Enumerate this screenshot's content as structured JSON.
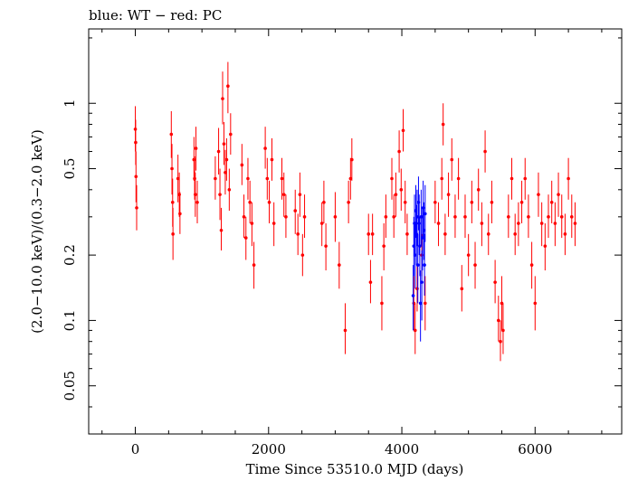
{
  "chart_data": {
    "type": "scatter",
    "title": "blue: WT − red: PC",
    "xlabel": "Time Since 53510.0 MJD (days)",
    "ylabel": "(2.0−10.0 keV)/(0.3−2.0 keV)",
    "xlim": [
      -700,
      7300
    ],
    "ylim": [
      0.03,
      2.2
    ],
    "yscale": "log",
    "grid": false,
    "xticks": [
      0,
      2000,
      4000,
      6000
    ],
    "xtick_labels": [
      "0",
      "2000",
      "4000",
      "6000"
    ],
    "yticks": [
      0.05,
      0.1,
      0.2,
      0.5,
      1
    ],
    "ytick_labels": [
      "0.05",
      "0.1",
      "0.2",
      "0.5",
      "1"
    ],
    "series": [
      {
        "name": "PC",
        "color": "#ff0000",
        "points": [
          [
            0,
            0.76,
            0.6,
            0.97
          ],
          [
            5,
            0.66,
            0.52,
            0.84
          ],
          [
            10,
            0.46,
            0.35,
            0.6
          ],
          [
            20,
            0.33,
            0.26,
            0.42
          ],
          [
            540,
            0.72,
            0.56,
            0.92
          ],
          [
            550,
            0.5,
            0.38,
            0.65
          ],
          [
            560,
            0.35,
            0.27,
            0.45
          ],
          [
            565,
            0.25,
            0.19,
            0.33
          ],
          [
            640,
            0.45,
            0.35,
            0.58
          ],
          [
            660,
            0.38,
            0.3,
            0.48
          ],
          [
            670,
            0.31,
            0.25,
            0.39
          ],
          [
            880,
            0.55,
            0.44,
            0.7
          ],
          [
            890,
            0.45,
            0.36,
            0.57
          ],
          [
            900,
            0.38,
            0.3,
            0.48
          ],
          [
            910,
            0.62,
            0.49,
            0.78
          ],
          [
            930,
            0.35,
            0.28,
            0.44
          ],
          [
            1200,
            0.45,
            0.36,
            0.57
          ],
          [
            1250,
            0.6,
            0.47,
            0.77
          ],
          [
            1270,
            0.38,
            0.29,
            0.5
          ],
          [
            1290,
            0.26,
            0.21,
            0.33
          ],
          [
            1310,
            1.05,
            0.8,
            1.4
          ],
          [
            1330,
            0.65,
            0.52,
            0.82
          ],
          [
            1350,
            0.48,
            0.38,
            0.61
          ],
          [
            1370,
            0.55,
            0.44,
            0.69
          ],
          [
            1390,
            1.2,
            0.9,
            1.55
          ],
          [
            1410,
            0.4,
            0.32,
            0.5
          ],
          [
            1430,
            0.72,
            0.58,
            0.9
          ],
          [
            1600,
            0.52,
            0.42,
            0.65
          ],
          [
            1630,
            0.3,
            0.24,
            0.38
          ],
          [
            1660,
            0.24,
            0.19,
            0.3
          ],
          [
            1690,
            0.45,
            0.36,
            0.56
          ],
          [
            1720,
            0.35,
            0.28,
            0.44
          ],
          [
            1750,
            0.28,
            0.22,
            0.35
          ],
          [
            1780,
            0.18,
            0.14,
            0.23
          ],
          [
            1950,
            0.62,
            0.5,
            0.78
          ],
          [
            1980,
            0.45,
            0.36,
            0.56
          ],
          [
            2010,
            0.35,
            0.28,
            0.44
          ],
          [
            2050,
            0.55,
            0.44,
            0.69
          ],
          [
            2080,
            0.28,
            0.22,
            0.35
          ],
          [
            2200,
            0.45,
            0.36,
            0.56
          ],
          [
            2230,
            0.38,
            0.3,
            0.48
          ],
          [
            2260,
            0.3,
            0.24,
            0.38
          ],
          [
            2400,
            0.32,
            0.25,
            0.4
          ],
          [
            2440,
            0.25,
            0.2,
            0.31
          ],
          [
            2470,
            0.38,
            0.3,
            0.48
          ],
          [
            2510,
            0.2,
            0.16,
            0.25
          ],
          [
            2540,
            0.3,
            0.24,
            0.38
          ],
          [
            2800,
            0.28,
            0.22,
            0.35
          ],
          [
            2830,
            0.35,
            0.28,
            0.44
          ],
          [
            2860,
            0.22,
            0.17,
            0.28
          ],
          [
            3000,
            0.3,
            0.23,
            0.39
          ],
          [
            3060,
            0.18,
            0.14,
            0.23
          ],
          [
            3150,
            0.09,
            0.07,
            0.12
          ],
          [
            3200,
            0.35,
            0.28,
            0.44
          ],
          [
            3230,
            0.45,
            0.36,
            0.56
          ],
          [
            3250,
            0.55,
            0.44,
            0.69
          ],
          [
            3500,
            0.25,
            0.2,
            0.31
          ],
          [
            3530,
            0.15,
            0.12,
            0.19
          ],
          [
            3560,
            0.25,
            0.2,
            0.31
          ],
          [
            3700,
            0.12,
            0.09,
            0.16
          ],
          [
            3730,
            0.22,
            0.17,
            0.28
          ],
          [
            3760,
            0.3,
            0.24,
            0.38
          ],
          [
            3850,
            0.45,
            0.36,
            0.56
          ],
          [
            3880,
            0.3,
            0.24,
            0.38
          ],
          [
            3910,
            0.38,
            0.3,
            0.48
          ],
          [
            3960,
            0.6,
            0.48,
            0.75
          ],
          [
            3990,
            0.4,
            0.32,
            0.5
          ],
          [
            4020,
            0.75,
            0.6,
            0.94
          ],
          [
            4050,
            0.35,
            0.28,
            0.44
          ],
          [
            4080,
            0.25,
            0.2,
            0.31
          ],
          [
            4180,
            0.12,
            0.09,
            0.16
          ],
          [
            4200,
            0.09,
            0.07,
            0.12
          ],
          [
            4230,
            0.14,
            0.11,
            0.18
          ],
          [
            4300,
            0.2,
            0.16,
            0.25
          ],
          [
            4350,
            0.12,
            0.09,
            0.16
          ],
          [
            4500,
            0.35,
            0.28,
            0.44
          ],
          [
            4550,
            0.28,
            0.22,
            0.35
          ],
          [
            4600,
            0.45,
            0.36,
            0.56
          ],
          [
            4620,
            0.8,
            0.64,
            1.0
          ],
          [
            4650,
            0.25,
            0.2,
            0.31
          ],
          [
            4700,
            0.38,
            0.3,
            0.48
          ],
          [
            4750,
            0.55,
            0.44,
            0.69
          ],
          [
            4800,
            0.3,
            0.24,
            0.38
          ],
          [
            4850,
            0.45,
            0.36,
            0.56
          ],
          [
            4900,
            0.14,
            0.11,
            0.18
          ],
          [
            4950,
            0.3,
            0.24,
            0.38
          ],
          [
            5000,
            0.2,
            0.16,
            0.25
          ],
          [
            5050,
            0.35,
            0.28,
            0.44
          ],
          [
            5100,
            0.18,
            0.14,
            0.23
          ],
          [
            5150,
            0.4,
            0.32,
            0.5
          ],
          [
            5200,
            0.28,
            0.22,
            0.35
          ],
          [
            5250,
            0.6,
            0.48,
            0.75
          ],
          [
            5300,
            0.25,
            0.2,
            0.31
          ],
          [
            5350,
            0.35,
            0.28,
            0.44
          ],
          [
            5400,
            0.15,
            0.12,
            0.19
          ],
          [
            5450,
            0.1,
            0.08,
            0.13
          ],
          [
            5480,
            0.08,
            0.065,
            0.1
          ],
          [
            5500,
            0.12,
            0.09,
            0.16
          ],
          [
            5520,
            0.09,
            0.07,
            0.12
          ],
          [
            5600,
            0.3,
            0.24,
            0.38
          ],
          [
            5650,
            0.45,
            0.36,
            0.56
          ],
          [
            5700,
            0.25,
            0.2,
            0.31
          ],
          [
            5750,
            0.28,
            0.22,
            0.35
          ],
          [
            5800,
            0.35,
            0.28,
            0.44
          ],
          [
            5850,
            0.45,
            0.36,
            0.56
          ],
          [
            5900,
            0.3,
            0.24,
            0.38
          ],
          [
            5950,
            0.18,
            0.14,
            0.23
          ],
          [
            6000,
            0.12,
            0.09,
            0.16
          ],
          [
            6050,
            0.38,
            0.3,
            0.48
          ],
          [
            6100,
            0.28,
            0.22,
            0.35
          ],
          [
            6150,
            0.22,
            0.17,
            0.28
          ],
          [
            6200,
            0.3,
            0.24,
            0.38
          ],
          [
            6250,
            0.35,
            0.28,
            0.44
          ],
          [
            6300,
            0.28,
            0.22,
            0.35
          ],
          [
            6350,
            0.38,
            0.3,
            0.48
          ],
          [
            6400,
            0.3,
            0.24,
            0.38
          ],
          [
            6450,
            0.25,
            0.2,
            0.31
          ],
          [
            6500,
            0.45,
            0.36,
            0.56
          ],
          [
            6550,
            0.3,
            0.24,
            0.38
          ],
          [
            6600,
            0.28,
            0.22,
            0.35
          ]
        ]
      },
      {
        "name": "WT",
        "color": "#0000ff",
        "points": [
          [
            4170,
            0.13,
            0.09,
            0.18
          ],
          [
            4180,
            0.22,
            0.16,
            0.3
          ],
          [
            4190,
            0.28,
            0.2,
            0.38
          ],
          [
            4200,
            0.2,
            0.14,
            0.28
          ],
          [
            4210,
            0.32,
            0.24,
            0.42
          ],
          [
            4220,
            0.25,
            0.18,
            0.34
          ],
          [
            4230,
            0.3,
            0.22,
            0.4
          ],
          [
            4240,
            0.18,
            0.12,
            0.25
          ],
          [
            4250,
            0.35,
            0.26,
            0.46
          ],
          [
            4260,
            0.28,
            0.2,
            0.38
          ],
          [
            4270,
            0.22,
            0.16,
            0.3
          ],
          [
            4280,
            0.12,
            0.08,
            0.17
          ],
          [
            4290,
            0.3,
            0.22,
            0.4
          ],
          [
            4300,
            0.15,
            0.1,
            0.21
          ],
          [
            4310,
            0.24,
            0.17,
            0.33
          ],
          [
            4320,
            0.33,
            0.24,
            0.44
          ],
          [
            4330,
            0.26,
            0.19,
            0.35
          ],
          [
            4340,
            0.18,
            0.13,
            0.25
          ],
          [
            4350,
            0.31,
            0.23,
            0.42
          ]
        ]
      }
    ]
  }
}
